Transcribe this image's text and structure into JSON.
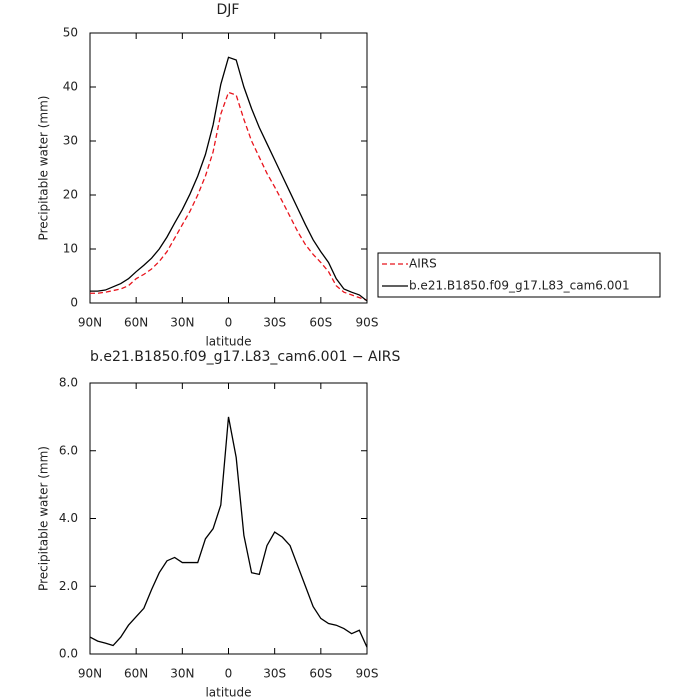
{
  "chart_data": [
    {
      "type": "line",
      "title": "DJF",
      "xlabel": "latitude",
      "ylabel": "Precipitable water (mm)",
      "x": [
        90,
        85,
        80,
        75,
        70,
        65,
        60,
        55,
        50,
        45,
        40,
        35,
        30,
        25,
        20,
        15,
        10,
        5,
        0,
        -5,
        -10,
        -15,
        -20,
        -25,
        -30,
        -35,
        -40,
        -45,
        -50,
        -55,
        -60,
        -65,
        -70,
        -75,
        -80,
        -85,
        -90
      ],
      "xlim": [
        90,
        -90
      ],
      "xticks": [
        {
          "value": 90,
          "label": "90N"
        },
        {
          "value": 60,
          "label": "60N"
        },
        {
          "value": 30,
          "label": "30N"
        },
        0,
        {
          "value": -30,
          "label": "30S"
        },
        {
          "value": -60,
          "label": "60S"
        },
        {
          "value": -90,
          "label": "90S"
        }
      ],
      "ylim": [
        0,
        50
      ],
      "yticks": [
        0,
        10,
        20,
        30,
        40,
        50
      ],
      "legend": "right",
      "series": [
        {
          "name": "AIRS",
          "color": "#e8141c",
          "dashed": true,
          "values": [
            1.8,
            1.8,
            2,
            2.3,
            2.6,
            3.2,
            4.5,
            5.3,
            6.3,
            7.7,
            9.5,
            12,
            14.5,
            17,
            20,
            23.5,
            28,
            35,
            39,
            38.5,
            34,
            30,
            27,
            24,
            21.5,
            18.8,
            16,
            13.2,
            10.8,
            9,
            7.5,
            5.8,
            3.2,
            2,
            1.5,
            1,
            0.5
          ]
        },
        {
          "name": "b.e21.B1850.f09_g17.L83_cam6.001",
          "color": "#000000",
          "dashed": false,
          "values": [
            2.2,
            2.2,
            2.4,
            3,
            3.6,
            4.5,
            5.8,
            7,
            8.3,
            10,
            12.2,
            14.8,
            17.3,
            20.2,
            23.5,
            27.5,
            33,
            40.5,
            45.5,
            45,
            40,
            36,
            32.5,
            29.5,
            26.5,
            23.5,
            20.5,
            17.5,
            14.5,
            11.7,
            9.5,
            7.5,
            4.5,
            2.6,
            2,
            1.5,
            0.4
          ]
        }
      ]
    },
    {
      "type": "line",
      "title": "b.e21.B1850.f09_g17.L83_cam6.001 − AIRS",
      "xlabel": "latitude",
      "ylabel": "Precipitable water (mm)",
      "x": [
        90,
        85,
        80,
        75,
        70,
        65,
        60,
        55,
        50,
        45,
        40,
        35,
        30,
        25,
        20,
        15,
        10,
        5,
        0,
        -5,
        -10,
        -15,
        -20,
        -25,
        -30,
        -35,
        -40,
        -45,
        -50,
        -55,
        -60,
        -65,
        -70,
        -75,
        -80,
        -85,
        -90
      ],
      "xlim": [
        90,
        -90
      ],
      "xticks": [
        {
          "value": 90,
          "label": "90N"
        },
        {
          "value": 60,
          "label": "60N"
        },
        {
          "value": 30,
          "label": "30N"
        },
        0,
        {
          "value": -30,
          "label": "30S"
        },
        {
          "value": -60,
          "label": "60S"
        },
        {
          "value": -90,
          "label": "90S"
        }
      ],
      "ylim": [
        0,
        8
      ],
      "yticks": [
        {
          "value": 0,
          "label": "0.0"
        },
        {
          "value": 2,
          "label": "2.0"
        },
        {
          "value": 4,
          "label": "4.0"
        },
        {
          "value": 6,
          "label": "6.0"
        },
        {
          "value": 8,
          "label": "8.0"
        }
      ],
      "series": [
        {
          "color": "#000000",
          "dashed": false,
          "values": [
            0.5,
            0.38,
            0.32,
            0.25,
            0.5,
            0.85,
            1.1,
            1.35,
            1.9,
            2.4,
            2.75,
            2.85,
            2.7,
            2.7,
            2.7,
            3.4,
            3.7,
            4.4,
            7.0,
            5.8,
            3.5,
            2.4,
            2.35,
            3.2,
            3.6,
            3.45,
            3.2,
            2.6,
            2.0,
            1.4,
            1.05,
            0.9,
            0.85,
            0.75,
            0.6,
            0.7,
            0.2
          ]
        }
      ]
    }
  ]
}
